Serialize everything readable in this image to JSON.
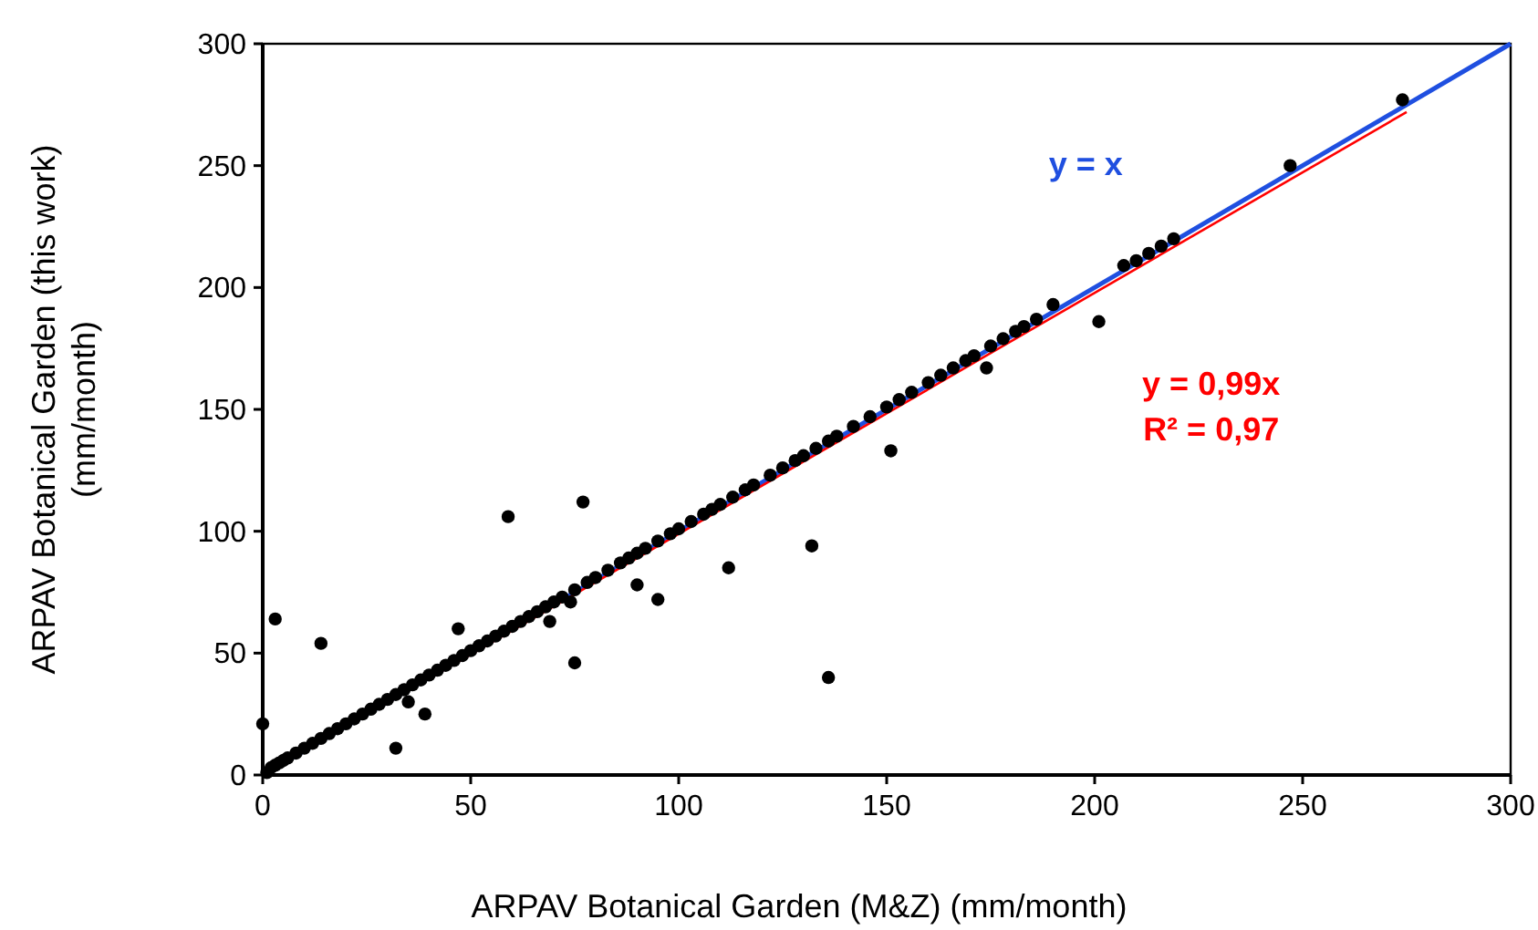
{
  "chart_data": {
    "type": "scatter",
    "xlabel": "ARPAV Botanical Garden (M&Z) (mm/month)",
    "ylabel": "ARPAV Botanical Garden (this work) (mm/month)",
    "xlim": [
      0,
      300
    ],
    "ylim": [
      0,
      300
    ],
    "xticks": [
      0,
      50,
      100,
      150,
      200,
      250,
      300
    ],
    "yticks": [
      0,
      50,
      100,
      150,
      200,
      250,
      300
    ],
    "grid": false,
    "annotations": [
      "R² = 0,97"
    ],
    "series": [
      {
        "marker": "circle",
        "color": "#000000",
        "x": [
          0,
          3,
          14,
          32,
          35,
          39,
          47,
          59,
          77,
          75,
          69,
          74,
          90,
          95,
          112,
          132,
          136,
          151,
          174,
          201,
          247,
          274,
          1,
          2,
          3,
          4,
          5,
          6,
          8,
          10,
          12,
          14,
          16,
          18,
          20,
          22,
          24,
          26,
          28,
          30,
          32,
          34,
          36,
          38,
          40,
          42,
          44,
          46,
          48,
          50,
          52,
          54,
          56,
          58,
          60,
          62,
          64,
          66,
          68,
          70,
          72,
          75,
          78,
          80,
          83,
          86,
          88,
          90,
          92,
          95,
          98,
          100,
          103,
          106,
          108,
          110,
          113,
          116,
          118,
          122,
          125,
          128,
          130,
          133,
          136,
          138,
          142,
          146,
          150,
          153,
          156,
          160,
          163,
          166,
          169,
          171,
          175,
          178,
          181,
          183,
          186,
          190,
          207,
          210,
          213,
          216,
          219
        ],
        "values": [
          21,
          64,
          54,
          11,
          30,
          25,
          60,
          106,
          112,
          46,
          63,
          71,
          78,
          72,
          85,
          94,
          40,
          133,
          167,
          186,
          250,
          277,
          1,
          3,
          4,
          5,
          6,
          7,
          9,
          11,
          13,
          15,
          17,
          19,
          21,
          23,
          25,
          27,
          29,
          31,
          33,
          35,
          37,
          39,
          41,
          43,
          45,
          47,
          49,
          51,
          53,
          55,
          57,
          59,
          61,
          63,
          65,
          67,
          69,
          71,
          73,
          76,
          79,
          81,
          84,
          87,
          89,
          91,
          93,
          96,
          99,
          101,
          104,
          107,
          109,
          111,
          114,
          117,
          119,
          123,
          126,
          129,
          131,
          134,
          137,
          139,
          143,
          147,
          151,
          154,
          157,
          161,
          164,
          167,
          170,
          172,
          176,
          179,
          182,
          184,
          187,
          193,
          209,
          211,
          214,
          217,
          220
        ]
      },
      {
        "type": "line",
        "name": "y = x",
        "color": "#1f4fe0",
        "x": [
          0,
          300
        ],
        "values": [
          0,
          300
        ],
        "marker": "none"
      },
      {
        "type": "line",
        "name": "y = 0,99x",
        "color": "#ff0000",
        "x": [
          0,
          275
        ],
        "values": [
          0,
          272
        ],
        "marker": "none"
      }
    ]
  }
}
